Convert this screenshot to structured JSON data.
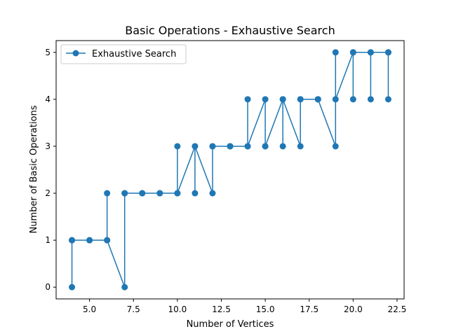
{
  "chart_data": {
    "type": "line",
    "title": "Basic Operations - Exhaustive Search",
    "xlabel": "Number of Vertices",
    "ylabel": "Number of Basic Operations",
    "xlim": [
      3.1,
      22.9
    ],
    "ylim": [
      -0.25,
      5.25
    ],
    "xticks": [
      5.0,
      7.5,
      10.0,
      12.5,
      15.0,
      17.5,
      20.0,
      22.5
    ],
    "xtick_labels": [
      "5.0",
      "7.5",
      "10.0",
      "12.5",
      "15.0",
      "17.5",
      "20.0",
      "22.5"
    ],
    "yticks": [
      0,
      1,
      2,
      3,
      4,
      5
    ],
    "ytick_labels": [
      "0",
      "1",
      "2",
      "3",
      "4",
      "5"
    ],
    "grid": false,
    "legend": {
      "position": "top-left",
      "entries": [
        "Exhaustive Search"
      ]
    },
    "series": [
      {
        "name": "Exhaustive Search",
        "color": "#1f77b4",
        "marker": "circle",
        "x": [
          4,
          4,
          4,
          5,
          5,
          6,
          6,
          6,
          7,
          7,
          7,
          8,
          8,
          9,
          9,
          10,
          10,
          10,
          11,
          11,
          11,
          12,
          12,
          12,
          13,
          13,
          13,
          14,
          14,
          14,
          15,
          15,
          15,
          16,
          16,
          16,
          17,
          17,
          17,
          18,
          18,
          18,
          19,
          19,
          19,
          20,
          20,
          20,
          21,
          21,
          21,
          22,
          22,
          22
        ],
        "y": [
          0,
          1,
          1,
          1,
          1,
          1,
          2,
          1,
          0,
          2,
          2,
          2,
          2,
          2,
          2,
          2,
          3,
          2,
          3,
          2,
          3,
          2,
          3,
          3,
          3,
          3,
          3,
          3,
          4,
          3,
          4,
          3,
          3,
          4,
          3,
          4,
          3,
          4,
          4,
          4,
          4,
          4,
          3,
          5,
          4,
          5,
          4,
          5,
          5,
          4,
          5,
          5,
          4,
          5
        ]
      }
    ]
  }
}
